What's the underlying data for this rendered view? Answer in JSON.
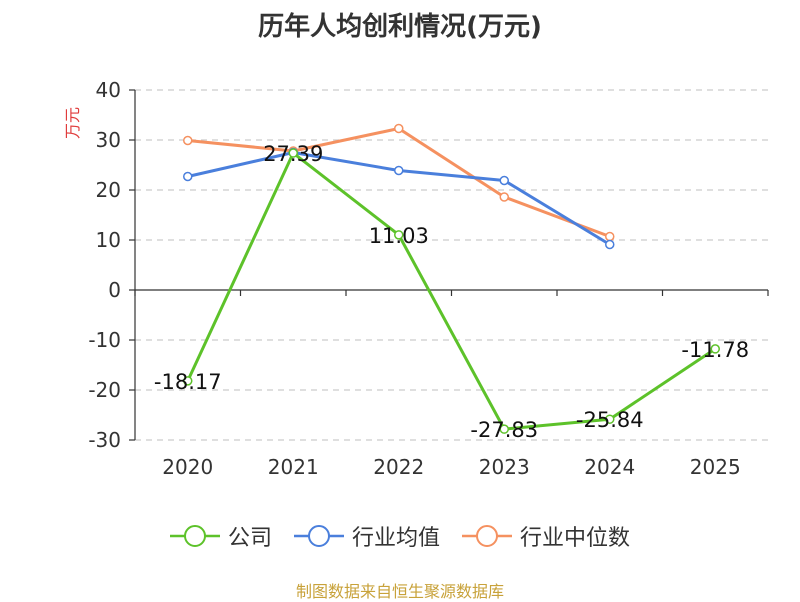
{
  "chart_data": {
    "type": "line",
    "title": "历年人均创利情况(万元)",
    "ylabel": "万元",
    "xlabel": "",
    "categories": [
      "2020",
      "2021",
      "2022",
      "2023",
      "2024",
      "2025"
    ],
    "ylim": [
      -30,
      40
    ],
    "yticks": [
      40,
      30,
      20,
      10,
      0,
      -10,
      -20,
      -30
    ],
    "grid": true,
    "legend_position": "bottom",
    "series": [
      {
        "name": "公司",
        "color": "#5dc22a",
        "values": [
          -18.17,
          27.39,
          11.03,
          -27.83,
          -25.84,
          -11.78
        ],
        "labels": [
          "-18.17",
          "27.39",
          "11.03",
          "-27.83",
          "-25.84",
          "-11.78"
        ]
      },
      {
        "name": "行业均值",
        "color": "#4a7fdc",
        "values": [
          22.7,
          27.5,
          23.9,
          21.9,
          9.1,
          null
        ]
      },
      {
        "name": "行业中位数",
        "color": "#f59160",
        "values": [
          29.9,
          27.8,
          32.3,
          18.6,
          10.7,
          null
        ]
      }
    ]
  },
  "source": "制图数据来自恒生聚源数据库"
}
